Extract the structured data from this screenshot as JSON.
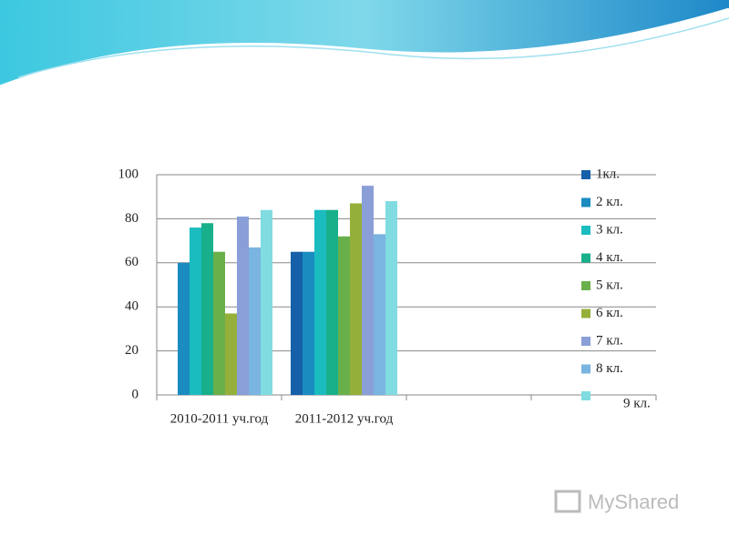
{
  "chart_data": {
    "type": "bar",
    "categories": [
      "2010-2011 уч.год",
      "2011-2012 уч.год",
      null,
      null
    ],
    "series": [
      {
        "name": "1кл.",
        "color": "#1560a8",
        "values": [
          null,
          65,
          null,
          null
        ]
      },
      {
        "name": "2 кл.",
        "color": "#1a8cc0",
        "values": [
          60,
          65,
          null,
          null
        ]
      },
      {
        "name": "3 кл.",
        "color": "#1bbcc0",
        "values": [
          76,
          84,
          null,
          null
        ]
      },
      {
        "name": "4 кл.",
        "color": "#17b08a",
        "values": [
          78,
          84,
          null,
          null
        ]
      },
      {
        "name": "5 кл.",
        "color": "#6ab04a",
        "values": [
          65,
          72,
          null,
          null
        ]
      },
      {
        "name": "6 кл.",
        "color": "#95b03a",
        "values": [
          37,
          87,
          null,
          null
        ]
      },
      {
        "name": "7 кл.",
        "color": "#8a9fd8",
        "values": [
          81,
          95,
          null,
          null
        ]
      },
      {
        "name": "8 кл.",
        "color": "#7ab4e0",
        "values": [
          67,
          73,
          null,
          null
        ]
      },
      {
        "name": "9 кл.",
        "color": "#80dce0",
        "values": [
          84,
          88,
          null,
          null
        ]
      }
    ],
    "ylim": [
      0,
      100
    ],
    "yticks": [
      0,
      20,
      40,
      60,
      80,
      100
    ],
    "grid": true,
    "legend": "right"
  },
  "watermark": "MyShared"
}
